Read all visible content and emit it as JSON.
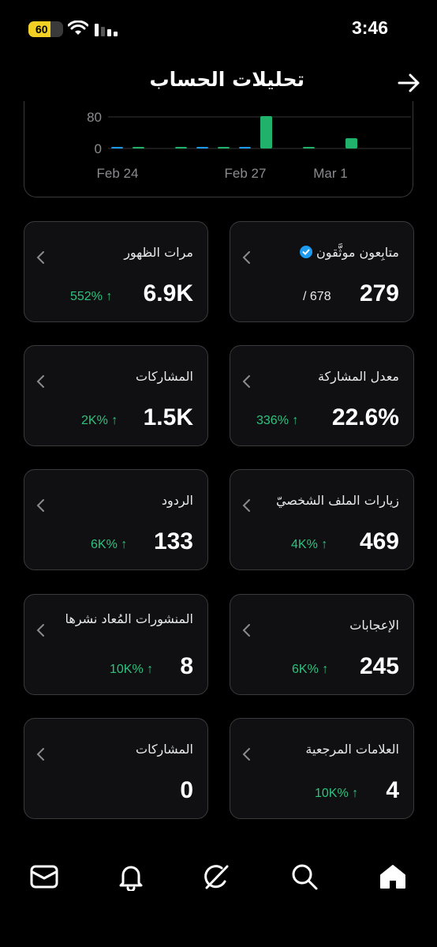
{
  "status_bar": {
    "battery_level": "60",
    "time": "3:46",
    "icons": [
      "battery-icon",
      "wifi-icon",
      "cellular-signal-icon"
    ]
  },
  "header": {
    "title": "تحليلات الحساب",
    "back_icon": "arrow-right-icon"
  },
  "chart_data": {
    "type": "bar",
    "y_tick_labels": [
      "80",
      "0"
    ],
    "x_tick_labels": [
      "Feb 24",
      "Feb 27",
      "Mar 1"
    ],
    "series": [
      {
        "color": "#20b26b",
        "values": [
          0,
          4,
          0,
          3,
          0,
          2,
          0,
          82,
          0,
          2,
          0,
          26
        ]
      },
      {
        "color": "#1d9bf0",
        "values": [
          1,
          0,
          0,
          0,
          1,
          0,
          4,
          0,
          0,
          0,
          0,
          0
        ]
      }
    ],
    "ylim": [
      0,
      100
    ]
  },
  "cards": [
    {
      "label": "متابِعون موثَّقون",
      "value": "279",
      "sub": "/ 678",
      "delta": "",
      "verified": true
    },
    {
      "label": "مرات الظهور",
      "value": "6.9K",
      "sub": "",
      "delta": "552% ↑",
      "verified": false
    },
    {
      "label": "معدل المشاركة",
      "value": "22.6%",
      "sub": "",
      "delta": "336% ↑",
      "verified": false
    },
    {
      "label": "المشاركات",
      "value": "1.5K",
      "sub": "",
      "delta": "2K% ↑",
      "verified": false
    },
    {
      "label": "زيارات الملف الشخصيّ",
      "value": "469",
      "sub": "",
      "delta": "4K% ↑",
      "verified": false
    },
    {
      "label": "الردود",
      "value": "133",
      "sub": "",
      "delta": "6K% ↑",
      "verified": false
    },
    {
      "label": "الإعجابات",
      "value": "245",
      "sub": "",
      "delta": "6K% ↑",
      "verified": false
    },
    {
      "label": "المنشورات المُعاد نشرها",
      "value": "8",
      "sub": "",
      "delta": "10K% ↑",
      "verified": false
    },
    {
      "label": "العلامات المرجعية",
      "value": "4",
      "sub": "",
      "delta": "10K% ↑",
      "verified": false
    },
    {
      "label": "المشاركات",
      "value": "0",
      "sub": "",
      "delta": "",
      "verified": false
    }
  ],
  "bottom_nav": {
    "items": [
      "home-icon",
      "search-icon",
      "grok-icon",
      "notifications-icon",
      "messages-icon"
    ],
    "accent": "#ffffff"
  },
  "colors": {
    "background": "#000000",
    "card_border": "#3a3a3c",
    "positive": "#2ec27e",
    "verified": "#1d9bf0"
  }
}
